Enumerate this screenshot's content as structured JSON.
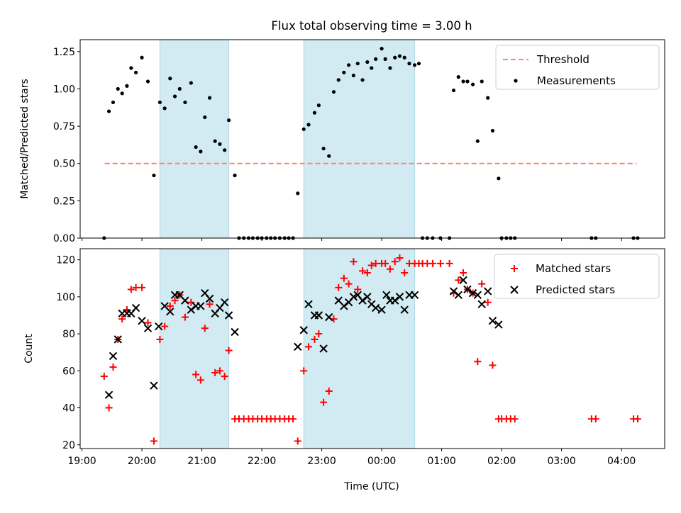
{
  "title": "Flux total observing time = 3.00 h",
  "x_axis": {
    "label": "Time (UTC)",
    "tick_labels": [
      "19:00",
      "20:00",
      "21:00",
      "22:00",
      "23:00",
      "00:00",
      "01:00",
      "02:00",
      "03:00",
      "04:00"
    ]
  },
  "colors": {
    "shade": "#add8e6",
    "threshold": "#ff7f7f",
    "measurement": "#000000",
    "matched": "#ff0000",
    "predicted": "#000000"
  },
  "chart_data": [
    {
      "type": "scatter",
      "title": "Flux total observing time = 3.00 h",
      "ylabel": "Matched/Predicted stars",
      "ylim": [
        0,
        1.33
      ],
      "xlim_hours": [
        18.97,
        28.72
      ],
      "x_unit": "hours since 00:00 UTC of first night",
      "yticks": [
        "0.00",
        "0.25",
        "0.50",
        "0.75",
        "1.00",
        "1.25"
      ],
      "shaded_intervals": [
        [
          20.3,
          21.45
        ],
        [
          22.7,
          24.55
        ]
      ],
      "threshold": {
        "name": "Threshold",
        "value": 0.5,
        "x_range": [
          19.38,
          28.25
        ],
        "style": "dashed"
      },
      "legend": {
        "position": "top-right",
        "entries": [
          "Threshold",
          "Measurements"
        ]
      },
      "series": [
        {
          "name": "Measurements",
          "marker": "dot",
          "points": [
            [
              19.37,
              0.0
            ],
            [
              19.45,
              0.85
            ],
            [
              19.52,
              0.91
            ],
            [
              19.6,
              1.0
            ],
            [
              19.67,
              0.97
            ],
            [
              19.75,
              1.02
            ],
            [
              19.82,
              1.14
            ],
            [
              19.9,
              1.11
            ],
            [
              20.0,
              1.21
            ],
            [
              20.1,
              1.05
            ],
            [
              20.2,
              0.42
            ],
            [
              20.3,
              0.91
            ],
            [
              20.38,
              0.87
            ],
            [
              20.47,
              1.07
            ],
            [
              20.55,
              0.95
            ],
            [
              20.63,
              1.0
            ],
            [
              20.72,
              0.91
            ],
            [
              20.82,
              1.04
            ],
            [
              20.9,
              0.61
            ],
            [
              20.98,
              0.58
            ],
            [
              21.05,
              0.81
            ],
            [
              21.13,
              0.94
            ],
            [
              21.22,
              0.65
            ],
            [
              21.3,
              0.63
            ],
            [
              21.38,
              0.59
            ],
            [
              21.45,
              0.79
            ],
            [
              21.55,
              0.42
            ],
            [
              21.62,
              0.0
            ],
            [
              21.7,
              0.0
            ],
            [
              21.78,
              0.0
            ],
            [
              21.85,
              0.0
            ],
            [
              21.93,
              0.0
            ],
            [
              22.0,
              0.0
            ],
            [
              22.08,
              0.0
            ],
            [
              22.15,
              0.0
            ],
            [
              22.22,
              0.0
            ],
            [
              22.3,
              0.0
            ],
            [
              22.38,
              0.0
            ],
            [
              22.45,
              0.0
            ],
            [
              22.52,
              0.0
            ],
            [
              22.6,
              0.3
            ],
            [
              22.7,
              0.73
            ],
            [
              22.78,
              0.76
            ],
            [
              22.88,
              0.84
            ],
            [
              22.95,
              0.89
            ],
            [
              23.03,
              0.6
            ],
            [
              23.12,
              0.55
            ],
            [
              23.2,
              0.98
            ],
            [
              23.28,
              1.06
            ],
            [
              23.37,
              1.11
            ],
            [
              23.45,
              1.16
            ],
            [
              23.53,
              1.09
            ],
            [
              23.6,
              1.17
            ],
            [
              23.68,
              1.06
            ],
            [
              23.76,
              1.18
            ],
            [
              23.83,
              1.14
            ],
            [
              23.9,
              1.2
            ],
            [
              24.0,
              1.27
            ],
            [
              24.06,
              1.2
            ],
            [
              24.14,
              1.14
            ],
            [
              24.22,
              1.21
            ],
            [
              24.3,
              1.22
            ],
            [
              24.38,
              1.21
            ],
            [
              24.46,
              1.17
            ],
            [
              24.55,
              1.16
            ],
            [
              24.62,
              1.17
            ],
            [
              24.68,
              0.0
            ],
            [
              24.76,
              0.0
            ],
            [
              24.85,
              0.0
            ],
            [
              24.98,
              0.0
            ],
            [
              25.13,
              0.0
            ],
            [
              25.2,
              0.99
            ],
            [
              25.28,
              1.08
            ],
            [
              25.36,
              1.05
            ],
            [
              25.43,
              1.05
            ],
            [
              25.52,
              1.03
            ],
            [
              25.6,
              0.65
            ],
            [
              25.67,
              1.05
            ],
            [
              25.77,
              0.94
            ],
            [
              25.85,
              0.72
            ],
            [
              25.95,
              0.4
            ],
            [
              26.0,
              0.0
            ],
            [
              26.08,
              0.0
            ],
            [
              26.15,
              0.0
            ],
            [
              26.22,
              0.0
            ],
            [
              27.5,
              0.0
            ],
            [
              27.57,
              0.0
            ],
            [
              28.2,
              0.0
            ],
            [
              28.27,
              0.0
            ]
          ]
        }
      ]
    },
    {
      "type": "scatter",
      "ylabel": "Count",
      "ylim": [
        18,
        126
      ],
      "xlim_hours": [
        18.97,
        28.72
      ],
      "yticks": [
        "20",
        "40",
        "60",
        "80",
        "100",
        "120"
      ],
      "shaded_intervals": [
        [
          20.3,
          21.45
        ],
        [
          22.7,
          24.55
        ]
      ],
      "legend": {
        "position": "top-right",
        "entries": [
          "Matched stars",
          "Predicted stars"
        ]
      },
      "series": [
        {
          "name": "Matched stars",
          "marker": "plus",
          "points": [
            [
              19.37,
              57
            ],
            [
              19.45,
              40
            ],
            [
              19.52,
              62
            ],
            [
              19.6,
              77
            ],
            [
              19.67,
              88
            ],
            [
              19.75,
              93
            ],
            [
              19.82,
              104
            ],
            [
              19.9,
              105
            ],
            [
              20.0,
              105
            ],
            [
              20.1,
              86
            ],
            [
              20.2,
              22
            ],
            [
              20.3,
              77
            ],
            [
              20.38,
              84
            ],
            [
              20.47,
              95
            ],
            [
              20.55,
              98
            ],
            [
              20.63,
              101
            ],
            [
              20.72,
              89
            ],
            [
              20.82,
              97
            ],
            [
              20.9,
              58
            ],
            [
              20.98,
              55
            ],
            [
              21.05,
              83
            ],
            [
              21.13,
              96
            ],
            [
              21.22,
              59
            ],
            [
              21.3,
              60
            ],
            [
              21.38,
              57
            ],
            [
              21.45,
              71
            ],
            [
              21.55,
              34
            ],
            [
              21.62,
              34
            ],
            [
              21.7,
              34
            ],
            [
              21.78,
              34
            ],
            [
              21.85,
              34
            ],
            [
              21.93,
              34
            ],
            [
              22.0,
              34
            ],
            [
              22.08,
              34
            ],
            [
              22.15,
              34
            ],
            [
              22.22,
              34
            ],
            [
              22.3,
              34
            ],
            [
              22.38,
              34
            ],
            [
              22.45,
              34
            ],
            [
              22.52,
              34
            ],
            [
              22.6,
              22
            ],
            [
              22.7,
              60
            ],
            [
              22.78,
              73
            ],
            [
              22.88,
              77
            ],
            [
              22.95,
              80
            ],
            [
              23.03,
              43
            ],
            [
              23.12,
              49
            ],
            [
              23.2,
              88
            ],
            [
              23.28,
              105
            ],
            [
              23.37,
              110
            ],
            [
              23.45,
              107
            ],
            [
              23.53,
              119
            ],
            [
              23.6,
              104
            ],
            [
              23.68,
              114
            ],
            [
              23.76,
              113
            ],
            [
              23.83,
              117
            ],
            [
              23.9,
              118
            ],
            [
              24.0,
              118
            ],
            [
              24.06,
              118
            ],
            [
              24.14,
              115
            ],
            [
              24.22,
              119
            ],
            [
              24.3,
              121
            ],
            [
              24.38,
              113
            ],
            [
              24.46,
              118
            ],
            [
              24.55,
              118
            ],
            [
              24.62,
              118
            ],
            [
              24.68,
              118
            ],
            [
              24.76,
              118
            ],
            [
              24.85,
              118
            ],
            [
              24.98,
              118
            ],
            [
              25.13,
              118
            ],
            [
              25.2,
              102
            ],
            [
              25.28,
              109
            ],
            [
              25.36,
              113
            ],
            [
              25.43,
              104
            ],
            [
              25.52,
              102
            ],
            [
              25.6,
              65
            ],
            [
              25.67,
              107
            ],
            [
              25.77,
              97
            ],
            [
              25.85,
              63
            ],
            [
              25.95,
              34
            ],
            [
              26.0,
              34
            ],
            [
              26.08,
              34
            ],
            [
              26.15,
              34
            ],
            [
              26.22,
              34
            ],
            [
              27.5,
              34
            ],
            [
              27.57,
              34
            ],
            [
              28.2,
              34
            ],
            [
              28.27,
              34
            ]
          ]
        },
        {
          "name": "Predicted stars",
          "marker": "x",
          "points": [
            [
              19.45,
              47
            ],
            [
              19.52,
              68
            ],
            [
              19.6,
              77
            ],
            [
              19.67,
              91
            ],
            [
              19.75,
              91
            ],
            [
              19.82,
              91
            ],
            [
              19.9,
              94
            ],
            [
              20.0,
              87
            ],
            [
              20.1,
              83
            ],
            [
              20.2,
              52
            ],
            [
              20.28,
              84
            ],
            [
              20.38,
              95
            ],
            [
              20.47,
              92
            ],
            [
              20.55,
              101
            ],
            [
              20.63,
              101
            ],
            [
              20.72,
              98
            ],
            [
              20.82,
              93
            ],
            [
              20.9,
              95
            ],
            [
              20.98,
              95
            ],
            [
              21.05,
              102
            ],
            [
              21.13,
              99
            ],
            [
              21.22,
              91
            ],
            [
              21.3,
              94
            ],
            [
              21.38,
              97
            ],
            [
              21.45,
              90
            ],
            [
              21.55,
              81
            ],
            [
              22.6,
              73
            ],
            [
              22.7,
              82
            ],
            [
              22.78,
              96
            ],
            [
              22.88,
              90
            ],
            [
              22.95,
              90
            ],
            [
              23.03,
              72
            ],
            [
              23.12,
              89
            ],
            [
              23.28,
              98
            ],
            [
              23.37,
              95
            ],
            [
              23.45,
              97
            ],
            [
              23.53,
              100
            ],
            [
              23.6,
              101
            ],
            [
              23.68,
              98
            ],
            [
              23.76,
              100
            ],
            [
              23.83,
              96
            ],
            [
              23.9,
              94
            ],
            [
              24.0,
              93
            ],
            [
              24.08,
              101
            ],
            [
              24.14,
              98
            ],
            [
              24.22,
              98
            ],
            [
              24.3,
              100
            ],
            [
              24.38,
              93
            ],
            [
              24.46,
              101
            ],
            [
              24.55,
              101
            ],
            [
              25.2,
              103
            ],
            [
              25.28,
              101
            ],
            [
              25.36,
              109
            ],
            [
              25.43,
              104
            ],
            [
              25.52,
              102
            ],
            [
              25.6,
              101
            ],
            [
              25.67,
              96
            ],
            [
              25.77,
              103
            ],
            [
              25.85,
              87
            ],
            [
              25.95,
              85
            ]
          ]
        }
      ]
    }
  ]
}
